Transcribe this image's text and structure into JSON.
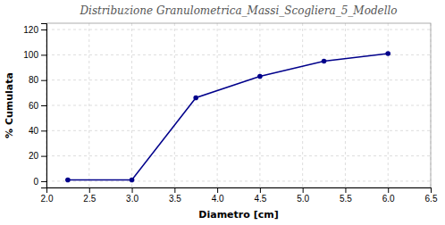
{
  "chart_data": {
    "type": "line",
    "title": "Distribuzione Granulometrica_Massi_Scogliera_5_Modello",
    "xlabel": "Diametro [cm]",
    "ylabel": "% Cumulata",
    "x": [
      2.25,
      3.0,
      3.75,
      4.5,
      5.25,
      6.0
    ],
    "values": [
      1,
      1,
      66,
      83,
      95,
      101
    ],
    "color": "#00008B",
    "marker": "circle",
    "xlim": [
      2.0,
      6.5
    ],
    "ylim": [
      -5,
      125
    ],
    "xticks": [
      {
        "value": 2.0,
        "label": "2.0"
      },
      {
        "value": 2.5,
        "label": "2.5"
      },
      {
        "value": 3.0,
        "label": "3.0"
      },
      {
        "value": 3.5,
        "label": "3.5"
      },
      {
        "value": 4.0,
        "label": "4.0"
      },
      {
        "value": 4.5,
        "label": "4.5"
      },
      {
        "value": 5.0,
        "label": "5.0"
      },
      {
        "value": 5.5,
        "label": "5.5"
      },
      {
        "value": 6.0,
        "label": "6.0"
      },
      {
        "value": 6.5,
        "label": "6.5"
      }
    ],
    "yticks": [
      0,
      20,
      40,
      60,
      80,
      100,
      120
    ],
    "grid": true
  }
}
